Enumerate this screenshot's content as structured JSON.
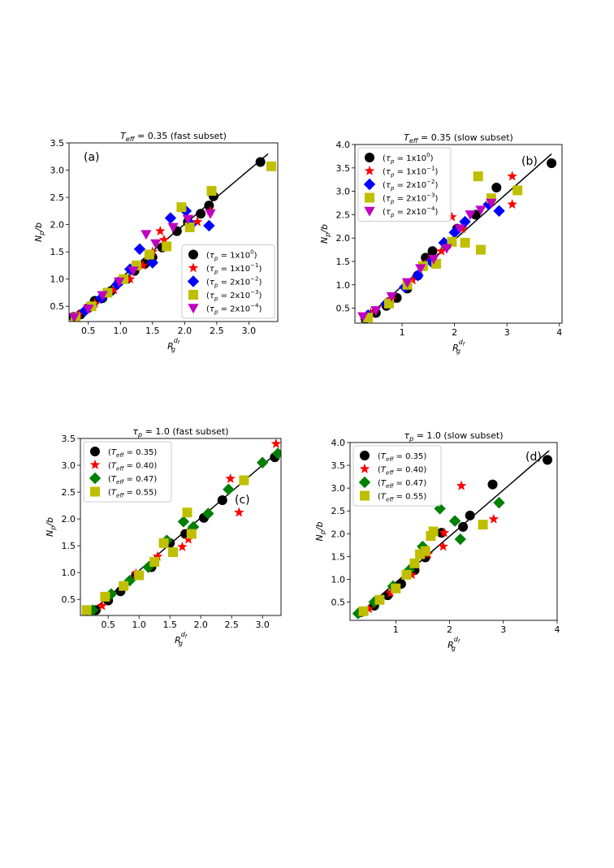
{
  "colors": {
    "black": "#000000",
    "red": "#ff0000",
    "blue": "#0000ff",
    "olive": "#bfbf00",
    "magenta": "#bf00bf",
    "green": "#008000"
  },
  "chart_data": [
    {
      "type": "scatter",
      "title": "T_eff = 0.35 (fast subset)",
      "title_parts": {
        "var": "T",
        "sub": "eff",
        "rest": " = 0.35 (fast subset)"
      },
      "panel_label": "(a)",
      "xlabel": {
        "base": "R",
        "sub": "g",
        "sup": "d",
        "supsub": "f"
      },
      "ylabel": {
        "base": "N",
        "sub": "p",
        "rest": "/b"
      },
      "xlim": [
        0.2,
        3.45
      ],
      "ylim": [
        0.22,
        3.5
      ],
      "xticks": [
        0.5,
        1.0,
        1.5,
        2.0,
        2.5,
        3.0
      ],
      "xtick_labels": [
        "0.5",
        "1.0",
        "1.5",
        "2.0",
        "2.5",
        "3.0"
      ],
      "yticks": [
        0.5,
        1.0,
        1.5,
        2.0,
        2.5,
        3.0,
        3.5
      ],
      "ytick_labels": [
        "0.5",
        "1.0",
        "1.5",
        "2.0",
        "2.5",
        "3.0",
        "3.5"
      ],
      "legend_position": "lower-right",
      "fit_line": {
        "x": [
          0.25,
          3.3
        ],
        "y": [
          0.27,
          3.3
        ]
      },
      "series": [
        {
          "name": "(τp = 1x10^0)",
          "label": {
            "var": "τ",
            "sub": "p",
            "val": "1x10",
            "exp": "0"
          },
          "marker": "circle",
          "color": "#000000",
          "x": [
            0.27,
            0.38,
            0.5,
            0.6,
            0.72,
            0.85,
            0.98,
            1.1,
            1.22,
            1.38,
            1.5,
            1.65,
            1.88,
            2.05,
            2.25,
            2.38,
            2.45,
            3.18
          ],
          "y": [
            0.31,
            0.35,
            0.47,
            0.6,
            0.65,
            0.78,
            0.95,
            1.0,
            1.15,
            1.28,
            1.4,
            1.58,
            1.88,
            2.05,
            2.2,
            2.35,
            2.52,
            3.15
          ]
        },
        {
          "name": "(τp = 1x10^-1)",
          "label": {
            "var": "τ",
            "sub": "p",
            "val": "1x10",
            "exp": "−1"
          },
          "marker": "star",
          "color": "#ff0000",
          "x": [
            0.35,
            0.6,
            0.9,
            1.15,
            1.35,
            1.5,
            1.62,
            1.68,
            2.2,
            2.4
          ],
          "y": [
            0.35,
            0.55,
            0.8,
            1.0,
            1.25,
            1.5,
            1.88,
            1.72,
            2.05,
            2.25
          ]
        },
        {
          "name": "(τp = 2x10^-2)",
          "label": {
            "var": "τ",
            "sub": "p",
            "val": "2x10",
            "exp": "−2"
          },
          "marker": "diamond",
          "color": "#0000ff",
          "x": [
            0.45,
            0.7,
            0.95,
            1.15,
            1.3,
            1.5,
            1.78,
            2.02,
            2.1,
            2.38
          ],
          "y": [
            0.42,
            0.65,
            0.9,
            1.18,
            1.55,
            1.3,
            2.12,
            2.25,
            2.0,
            1.98
          ]
        },
        {
          "name": "(τp = 2x10^-3)",
          "label": {
            "var": "τ",
            "sub": "p",
            "val": "2x10",
            "exp": "−3"
          },
          "marker": "square",
          "color": "#bfbf00",
          "x": [
            0.3,
            0.55,
            0.8,
            1.05,
            1.25,
            1.45,
            1.72,
            1.95,
            2.08,
            2.42,
            3.35
          ],
          "y": [
            0.3,
            0.5,
            0.75,
            1.0,
            1.25,
            1.45,
            1.6,
            2.32,
            1.95,
            2.62,
            3.07
          ]
        },
        {
          "name": "(τp = 2x10^-4)",
          "label": {
            "var": "τ",
            "sub": "p",
            "val": "2x10",
            "exp": "−4"
          },
          "marker": "triangle-down",
          "color": "#bf00bf",
          "x": [
            0.28,
            0.5,
            0.72,
            0.98,
            1.2,
            1.4,
            1.55,
            1.82,
            2.05,
            2.4
          ],
          "y": [
            0.3,
            0.45,
            0.7,
            0.95,
            1.15,
            1.82,
            1.65,
            1.95,
            2.1,
            2.2
          ]
        }
      ]
    },
    {
      "type": "scatter",
      "title": "T_eff = 0.35 (slow subset)",
      "title_parts": {
        "var": "T",
        "sub": "eff",
        "rest": " = 0.35 (slow subset)"
      },
      "panel_label": "(b)",
      "xlabel": {
        "base": "R",
        "sub": "g",
        "sup": "d",
        "supsub": "f"
      },
      "ylabel": {
        "base": "N",
        "sub": "p",
        "rest": "/b"
      },
      "xlim": [
        0.1,
        4.05
      ],
      "ylim": [
        0.18,
        4.0
      ],
      "xticks": [
        1,
        2,
        3,
        4
      ],
      "xtick_labels": [
        "1",
        "2",
        "3",
        "4"
      ],
      "yticks": [
        0.5,
        1.0,
        1.5,
        2.0,
        2.5,
        3.0,
        3.5,
        4.0
      ],
      "ytick_labels": [
        "0.5",
        "1.0",
        "1.5",
        "2.0",
        "2.5",
        "3.0",
        "3.5",
        "4.0"
      ],
      "legend_position": "upper-left",
      "fit_line": {
        "x": [
          0.22,
          3.85
        ],
        "y": [
          0.2,
          3.8
        ]
      },
      "series": [
        {
          "name": "(τp = 1x10^0)",
          "label": {
            "var": "τ",
            "sub": "p",
            "val": "1x10",
            "exp": "0"
          },
          "marker": "circle",
          "color": "#000000",
          "x": [
            0.3,
            0.5,
            0.7,
            0.9,
            1.1,
            1.3,
            1.45,
            1.58,
            1.85,
            2.05,
            2.4,
            2.8,
            3.85
          ],
          "y": [
            0.28,
            0.4,
            0.55,
            0.72,
            0.92,
            1.2,
            1.58,
            1.72,
            1.85,
            2.2,
            2.5,
            3.08,
            3.6
          ]
        },
        {
          "name": "(τp = 1x10^-1)",
          "label": {
            "var": "τ",
            "sub": "p",
            "val": "1x10",
            "exp": "−1"
          },
          "marker": "star",
          "color": "#ff0000",
          "x": [
            0.4,
            0.8,
            1.2,
            1.5,
            1.75,
            1.95,
            2.15,
            3.1,
            3.1
          ],
          "y": [
            0.4,
            0.7,
            1.1,
            1.5,
            1.72,
            2.45,
            2.2,
            3.32,
            2.72
          ]
        },
        {
          "name": "(τp = 2x10^-2)",
          "label": {
            "var": "τ",
            "sub": "p",
            "val": "2x10",
            "exp": "−2"
          },
          "marker": "diamond",
          "color": "#0000ff",
          "x": [
            0.35,
            0.7,
            1.05,
            1.3,
            1.55,
            1.8,
            2.0,
            2.2,
            2.65,
            2.85
          ],
          "y": [
            0.35,
            0.6,
            0.95,
            1.2,
            1.5,
            1.9,
            2.12,
            2.35,
            2.72,
            2.58
          ]
        },
        {
          "name": "(τp = 2x10^-3)",
          "label": {
            "var": "τ",
            "sub": "p",
            "val": "2x10",
            "exp": "−3"
          },
          "marker": "square",
          "color": "#bfbf00",
          "x": [
            0.35,
            0.75,
            1.1,
            1.4,
            1.65,
            1.95,
            2.2,
            2.45,
            2.5,
            2.7,
            3.2
          ],
          "y": [
            0.3,
            0.6,
            1.0,
            1.4,
            1.45,
            1.92,
            1.9,
            3.32,
            1.75,
            2.85,
            3.02
          ]
        },
        {
          "name": "(τp = 2x10^-4)",
          "label": {
            "var": "τ",
            "sub": "p",
            "val": "2x10",
            "exp": "−4"
          },
          "marker": "triangle-down",
          "color": "#bf00bf",
          "x": [
            0.25,
            0.5,
            0.8,
            1.1,
            1.35,
            1.6,
            1.85,
            2.1,
            2.3,
            2.5,
            2.7
          ],
          "y": [
            0.32,
            0.45,
            0.75,
            1.05,
            1.35,
            1.55,
            1.78,
            2.2,
            2.5,
            2.6,
            2.75
          ]
        }
      ]
    },
    {
      "type": "scatter",
      "title": "τp = 1.0 (fast subset)",
      "title_parts": {
        "var": "τ",
        "sub": "p",
        "rest": " = 1.0 (fast subset)"
      },
      "panel_label": "(c)",
      "xlabel": {
        "base": "R",
        "sub": "g",
        "sup": "d",
        "supsub": "f"
      },
      "ylabel": {
        "base": "N",
        "sub": "p",
        "rest": "/b"
      },
      "xlim": [
        0.05,
        3.3
      ],
      "ylim": [
        0.2,
        3.5
      ],
      "xticks": [
        0.5,
        1.0,
        1.5,
        2.0,
        2.5,
        3.0
      ],
      "xtick_labels": [
        "0.5",
        "1.0",
        "1.5",
        "2.0",
        "2.5",
        "3.0"
      ],
      "yticks": [
        0.5,
        1.0,
        1.5,
        2.0,
        2.5,
        3.0,
        3.5
      ],
      "ytick_labels": [
        "0.5",
        "1.0",
        "1.5",
        "2.0",
        "2.5",
        "3.0",
        "3.5"
      ],
      "legend_position": "upper-left",
      "fit_line": {
        "x": [
          0.15,
          3.25
        ],
        "y": [
          0.2,
          3.25
        ]
      },
      "series": [
        {
          "name": "(Teff = 0.35)",
          "label": {
            "var": "T",
            "sub": "eff",
            "val": "0.35",
            "exp": ""
          },
          "marker": "circle",
          "color": "#000000",
          "x": [
            0.3,
            0.5,
            0.7,
            0.95,
            1.2,
            1.5,
            1.75,
            2.05,
            2.35,
            3.2
          ],
          "y": [
            0.3,
            0.48,
            0.65,
            0.95,
            1.1,
            1.55,
            1.72,
            2.02,
            2.35,
            3.15
          ]
        },
        {
          "name": "(Teff = 0.40)",
          "label": {
            "var": "T",
            "sub": "eff",
            "val": "0.40",
            "exp": ""
          },
          "marker": "star",
          "color": "#ff0000",
          "x": [
            0.4,
            0.95,
            1.3,
            1.7,
            1.8,
            2.48,
            2.62,
            3.22
          ],
          "y": [
            0.38,
            0.98,
            1.3,
            1.48,
            1.62,
            2.75,
            2.12,
            3.4
          ]
        },
        {
          "name": "(Teff = 0.47)",
          "label": {
            "var": "T",
            "sub": "eff",
            "val": "0.47",
            "exp": ""
          },
          "marker": "diamond",
          "color": "#008000",
          "x": [
            0.25,
            0.55,
            0.85,
            1.15,
            1.45,
            1.72,
            1.88,
            2.12,
            2.45,
            3.0,
            3.25
          ],
          "y": [
            0.3,
            0.6,
            0.85,
            1.1,
            1.6,
            1.95,
            1.85,
            2.1,
            2.55,
            3.05,
            3.22
          ]
        },
        {
          "name": "(Teff = 0.55)",
          "label": {
            "var": "T",
            "sub": "eff",
            "val": "0.55",
            "exp": ""
          },
          "marker": "square",
          "color": "#bfbf00",
          "x": [
            0.15,
            0.45,
            0.75,
            1.0,
            1.25,
            1.4,
            1.55,
            1.78,
            1.85,
            2.7
          ],
          "y": [
            0.3,
            0.55,
            0.75,
            0.95,
            1.2,
            1.55,
            1.38,
            2.12,
            1.72,
            2.72
          ]
        }
      ]
    },
    {
      "type": "scatter",
      "title": "τp = 1.0 (slow subset)",
      "title_parts": {
        "var": "τ",
        "sub": "p",
        "rest": " = 1.0 (slow subset)"
      },
      "panel_label": "(d)",
      "xlabel": {
        "base": "R",
        "sub": "g",
        "sup": "d",
        "supsub": "f"
      },
      "ylabel": {
        "base": "N",
        "sub": "p",
        "rest": "/b"
      },
      "xlim": [
        0.15,
        4.0
      ],
      "ylim": [
        0.1,
        4.0
      ],
      "xticks": [
        1,
        2,
        3,
        4
      ],
      "xtick_labels": [
        "1",
        "2",
        "3",
        "4"
      ],
      "yticks": [
        0.5,
        1.0,
        1.5,
        2.0,
        2.5,
        3.0,
        3.5,
        4.0
      ],
      "ytick_labels": [
        "0.5",
        "1.0",
        "1.5",
        "2.0",
        "2.5",
        "3.0",
        "3.5",
        "4.0"
      ],
      "legend_position": "upper-left",
      "fit_line": {
        "x": [
          0.3,
          3.85
        ],
        "y": [
          0.22,
          3.82
        ]
      },
      "series": [
        {
          "name": "(Teff = 0.35)",
          "label": {
            "var": "T",
            "sub": "eff",
            "val": "0.35",
            "exp": ""
          },
          "marker": "circle",
          "color": "#000000",
          "x": [
            0.35,
            0.6,
            0.85,
            1.1,
            1.35,
            1.55,
            1.85,
            2.25,
            2.38,
            2.8,
            3.82
          ],
          "y": [
            0.28,
            0.42,
            0.65,
            0.9,
            1.2,
            1.48,
            2.02,
            2.15,
            2.4,
            3.08,
            3.62
          ]
        },
        {
          "name": "(Teff = 0.40)",
          "label": {
            "var": "T",
            "sub": "eff",
            "val": "0.40",
            "exp": ""
          },
          "marker": "star",
          "color": "#ff0000",
          "x": [
            0.5,
            0.9,
            1.3,
            1.6,
            1.88,
            1.9,
            2.22,
            2.82
          ],
          "y": [
            0.35,
            0.7,
            1.1,
            1.55,
            1.72,
            2.02,
            3.05,
            2.32
          ]
        },
        {
          "name": "(Teff = 0.47)",
          "label": {
            "var": "T",
            "sub": "eff",
            "val": "0.47",
            "exp": ""
          },
          "marker": "diamond",
          "color": "#008000",
          "x": [
            0.3,
            0.6,
            0.95,
            1.25,
            1.5,
            1.82,
            2.1,
            2.2,
            2.92
          ],
          "y": [
            0.25,
            0.5,
            0.85,
            1.2,
            1.72,
            2.55,
            2.28,
            1.88,
            2.68
          ]
        },
        {
          "name": "(Teff = 0.55)",
          "label": {
            "var": "T",
            "sub": "eff",
            "val": "0.55",
            "exp": ""
          },
          "marker": "square",
          "color": "#bfbf00",
          "x": [
            0.4,
            0.7,
            1.0,
            1.2,
            1.35,
            1.45,
            1.55,
            1.65,
            1.7,
            2.62
          ],
          "y": [
            0.3,
            0.55,
            0.8,
            1.1,
            1.35,
            1.55,
            1.62,
            1.95,
            2.05,
            2.2
          ]
        }
      ]
    }
  ]
}
